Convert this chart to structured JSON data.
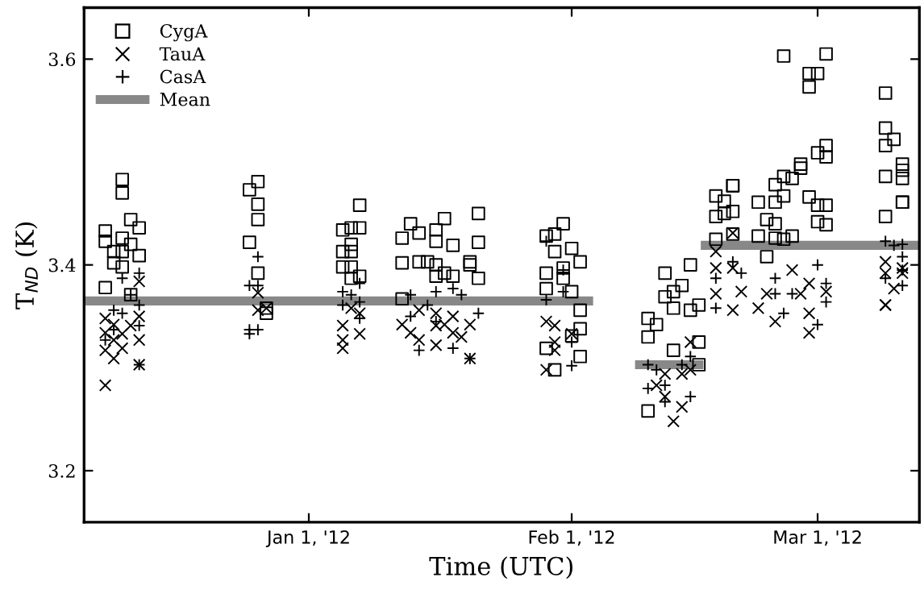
{
  "chart_data": {
    "type": "scatter",
    "xlabel": "Time (UTC)",
    "ylabel": "T$_{ND}$ (K)",
    "xlim": [
      "2011-12-05T12:00",
      "2012-03-13"
    ],
    "ylim": [
      3.15,
      3.65
    ],
    "xticks": [
      {
        "value": "2012-01-01",
        "label": "Jan 1, '12"
      },
      {
        "value": "2012-02-01",
        "label": "Feb 1, '12"
      },
      {
        "value": "2012-03-01",
        "label": "Mar 1, '12"
      }
    ],
    "yticks": [
      3.2,
      3.4,
      3.6
    ],
    "grid": false,
    "legend": "top left",
    "series": [
      {
        "name": "CygA",
        "color": "#000000",
        "marker": "square",
        "x": [
          "2011-12-10",
          "2011-12-10",
          "2011-12-11",
          "2011-12-12",
          "2011-12-08",
          "2011-12-08",
          "2011-12-10",
          "2011-12-11",
          "2011-12-09",
          "2011-12-10",
          "2011-12-12",
          "2011-12-09",
          "2011-12-10",
          "2011-12-11",
          "2011-12-08",
          "2011-12-26",
          "2011-12-25",
          "2011-12-26",
          "2011-12-26",
          "2011-12-25",
          "2011-12-26",
          "2011-12-27",
          "2011-12-27",
          "2012-01-07",
          "2012-01-05",
          "2012-01-06",
          "2012-01-07",
          "2012-01-06",
          "2012-01-05",
          "2012-01-06",
          "2012-01-05",
          "2012-01-06",
          "2012-01-07",
          "2012-01-06",
          "2012-01-13",
          "2012-01-12",
          "2012-01-14",
          "2012-01-16",
          "2012-01-17",
          "2012-01-16",
          "2012-01-18",
          "2012-01-21",
          "2012-01-21",
          "2012-01-12",
          "2012-01-14",
          "2012-01-15",
          "2012-01-16",
          "2012-01-16",
          "2012-01-17",
          "2012-01-18",
          "2012-01-20",
          "2012-01-21",
          "2012-01-12",
          "2012-01-20",
          "2012-01-31",
          "2012-01-30",
          "2012-01-29",
          "2012-01-30",
          "2012-02-01",
          "2012-02-02",
          "2012-01-29",
          "2012-01-31",
          "2012-01-31",
          "2012-01-29",
          "2012-02-01",
          "2012-02-02",
          "2012-02-02",
          "2012-02-01",
          "2012-01-29",
          "2012-01-30",
          "2012-02-02",
          "2012-02-15",
          "2012-02-12",
          "2012-02-14",
          "2012-02-13",
          "2012-02-12",
          "2012-02-15",
          "2012-02-13",
          "2012-02-10",
          "2012-02-16",
          "2012-02-11",
          "2012-02-10",
          "2012-02-16",
          "2012-02-13",
          "2012-02-10",
          "2012-02-16",
          "2012-02-26",
          "2012-03-02",
          "2012-02-29",
          "2012-03-01",
          "2012-02-29",
          "2012-03-02",
          "2012-03-01",
          "2012-02-28",
          "2012-03-02",
          "2012-02-28",
          "2012-02-18",
          "2012-02-20",
          "2012-02-20",
          "2012-02-19",
          "2012-02-18",
          "2012-02-19",
          "2012-02-20",
          "2012-02-23",
          "2012-02-25",
          "2012-02-26",
          "2012-02-27",
          "2012-02-25",
          "2012-02-24",
          "2012-02-25",
          "2012-02-26",
          "2012-02-29",
          "2012-03-02",
          "2012-03-01",
          "2012-03-01",
          "2012-03-02",
          "2012-02-18",
          "2012-02-23",
          "2012-02-24",
          "2012-02-25",
          "2012-02-27",
          "2012-02-20",
          "2012-02-26",
          "2012-03-09",
          "2012-03-09",
          "2012-03-10",
          "2012-03-09",
          "2012-03-11",
          "2012-03-11",
          "2012-03-09",
          "2012-03-11",
          "2012-03-11",
          "2012-03-11",
          "2012-03-09"
        ],
        "values": [
          3.483,
          3.47,
          3.444,
          3.436,
          3.433,
          3.423,
          3.426,
          3.42,
          3.413,
          3.413,
          3.409,
          3.402,
          3.398,
          3.371,
          3.378,
          3.481,
          3.473,
          3.459,
          3.444,
          3.422,
          3.392,
          3.358,
          3.353,
          3.458,
          3.434,
          3.436,
          3.436,
          3.42,
          3.413,
          3.413,
          3.398,
          3.398,
          3.389,
          3.387,
          3.44,
          3.426,
          3.431,
          3.423,
          3.445,
          3.434,
          3.419,
          3.45,
          3.422,
          3.402,
          3.403,
          3.403,
          3.4,
          3.389,
          3.392,
          3.389,
          3.403,
          3.387,
          3.367,
          3.4,
          3.44,
          3.43,
          3.428,
          3.413,
          3.416,
          3.403,
          3.392,
          3.397,
          3.387,
          3.377,
          3.374,
          3.356,
          3.338,
          3.331,
          3.319,
          3.298,
          3.311,
          3.4,
          3.392,
          3.38,
          3.374,
          3.369,
          3.356,
          3.358,
          3.348,
          3.361,
          3.342,
          3.33,
          3.325,
          3.317,
          3.258,
          3.303,
          3.603,
          3.605,
          3.586,
          3.586,
          3.573,
          3.516,
          3.509,
          3.498,
          3.505,
          3.494,
          3.467,
          3.477,
          3.477,
          3.462,
          3.447,
          3.45,
          3.452,
          3.461,
          3.478,
          3.486,
          3.484,
          3.461,
          3.444,
          3.44,
          3.467,
          3.466,
          3.458,
          3.458,
          3.442,
          3.439,
          3.425,
          3.428,
          3.408,
          3.426,
          3.428,
          3.43,
          3.425,
          3.567,
          3.533,
          3.522,
          3.516,
          3.498,
          3.492,
          3.486,
          3.484,
          3.461,
          3.461,
          3.447
        ]
      },
      {
        "name": "TauA",
        "color": "#000000",
        "marker": "cross",
        "x": [
          "2011-12-08",
          "2011-12-08",
          "2011-12-08",
          "2011-12-09",
          "2011-12-09",
          "2011-12-10",
          "2011-12-10",
          "2011-12-11",
          "2011-12-12",
          "2011-12-12",
          "2011-12-12",
          "2011-12-12",
          "2011-12-08",
          "2011-12-09",
          "2011-12-26",
          "2011-12-26",
          "2011-12-27",
          "2012-01-05",
          "2012-01-05",
          "2012-01-05",
          "2012-01-07",
          "2012-01-07",
          "2012-01-06",
          "2012-01-12",
          "2012-01-13",
          "2012-01-14",
          "2012-01-16",
          "2012-01-16",
          "2012-01-17",
          "2012-01-18",
          "2012-01-19",
          "2012-01-20",
          "2012-01-20",
          "2012-01-14",
          "2012-01-18",
          "2012-01-16",
          "2012-01-29",
          "2012-01-30",
          "2012-01-30",
          "2012-01-29",
          "2012-01-30",
          "2012-02-01",
          "2012-02-12",
          "2012-02-13",
          "2012-02-14",
          "2012-02-11",
          "2012-02-12",
          "2012-02-14",
          "2012-02-15",
          "2012-02-15",
          "2012-02-18",
          "2012-02-18",
          "2012-02-20",
          "2012-02-20",
          "2012-02-18",
          "2012-02-20",
          "2012-02-21",
          "2012-02-23",
          "2012-02-25",
          "2012-02-24",
          "2012-02-27",
          "2012-02-29",
          "2012-02-29",
          "2012-02-29",
          "2012-03-02",
          "2012-02-28",
          "2012-03-09",
          "2012-03-09",
          "2012-03-09",
          "2012-03-09",
          "2012-03-11",
          "2012-03-11",
          "2012-03-10"
        ],
        "values": [
          3.283,
          3.348,
          3.334,
          3.327,
          3.309,
          3.319,
          3.333,
          3.341,
          3.303,
          3.327,
          3.35,
          3.384,
          3.317,
          3.342,
          3.373,
          3.356,
          3.358,
          3.341,
          3.327,
          3.319,
          3.333,
          3.353,
          3.358,
          3.342,
          3.334,
          3.327,
          3.341,
          3.322,
          3.342,
          3.334,
          3.33,
          3.309,
          3.342,
          3.356,
          3.35,
          3.353,
          3.345,
          3.341,
          3.317,
          3.298,
          3.325,
          3.333,
          3.272,
          3.248,
          3.262,
          3.283,
          3.294,
          3.294,
          3.325,
          3.298,
          3.413,
          3.397,
          3.431,
          3.397,
          3.372,
          3.356,
          3.374,
          3.358,
          3.345,
          3.372,
          3.395,
          3.382,
          3.353,
          3.334,
          3.374,
          3.372,
          3.392,
          3.361,
          3.361,
          3.403,
          3.392,
          3.397,
          3.377
        ]
      },
      {
        "name": "CasA",
        "color": "#000000",
        "marker": "plus",
        "x": [
          "2011-12-10",
          "2011-12-11",
          "2011-12-09",
          "2011-12-10",
          "2011-12-12",
          "2011-12-12",
          "2011-12-08",
          "2011-12-09",
          "2011-12-12",
          "2011-12-12",
          "2011-12-26",
          "2011-12-26",
          "2011-12-25",
          "2011-12-25",
          "2011-12-26",
          "2011-12-25",
          "2012-01-05",
          "2012-01-06",
          "2012-01-07",
          "2012-01-07",
          "2012-01-05",
          "2012-01-07",
          "2012-01-14",
          "2012-01-18",
          "2012-01-20",
          "2012-01-13",
          "2012-01-15",
          "2012-01-16",
          "2012-01-18",
          "2012-01-19",
          "2012-01-21",
          "2012-01-13",
          "2012-01-16",
          "2012-01-29",
          "2012-01-31",
          "2012-02-01",
          "2012-02-01",
          "2012-01-29",
          "2012-01-31",
          "2012-02-10",
          "2012-02-11",
          "2012-02-10",
          "2012-02-12",
          "2012-02-14",
          "2012-02-15",
          "2012-02-15",
          "2012-02-12",
          "2012-02-18",
          "2012-02-18",
          "2012-02-20",
          "2012-02-21",
          "2012-02-25",
          "2012-02-25",
          "2012-02-27",
          "2012-03-01",
          "2012-03-02",
          "2012-03-02",
          "2012-03-01",
          "2012-02-26",
          "2012-03-09",
          "2012-03-10",
          "2012-03-11",
          "2012-03-09",
          "2012-03-11",
          "2012-03-11",
          "2012-03-11"
        ],
        "values": [
          3.387,
          3.371,
          3.356,
          3.353,
          3.341,
          3.361,
          3.327,
          3.337,
          3.303,
          3.392,
          3.408,
          3.38,
          3.337,
          3.333,
          3.337,
          3.38,
          3.374,
          3.371,
          3.382,
          3.348,
          3.361,
          3.364,
          3.317,
          3.319,
          3.309,
          3.371,
          3.361,
          3.374,
          3.377,
          3.371,
          3.353,
          3.35,
          3.345,
          3.423,
          3.374,
          3.325,
          3.302,
          3.366,
          3.395,
          3.303,
          3.298,
          3.28,
          3.267,
          3.303,
          3.272,
          3.311,
          3.283,
          3.387,
          3.358,
          3.403,
          3.392,
          3.387,
          3.372,
          3.372,
          3.4,
          3.382,
          3.364,
          3.342,
          3.353,
          3.423,
          3.419,
          3.42,
          3.387,
          3.408,
          3.38,
          3.395
        ]
      },
      {
        "name": "Mean",
        "type": "line",
        "color": "#888888",
        "marker": "none",
        "x": [
          "2011-12-05T12:00",
          "2012-02-03",
          "2012-02-06",
          "2012-02-09",
          "2012-02-16",
          "2012-02-16T09:00",
          "2012-02-16T18:00",
          "2012-03-13"
        ],
        "values": [
          3.365,
          3.365,
          null,
          3.303,
          3.303,
          null,
          3.419,
          3.419
        ]
      }
    ]
  }
}
